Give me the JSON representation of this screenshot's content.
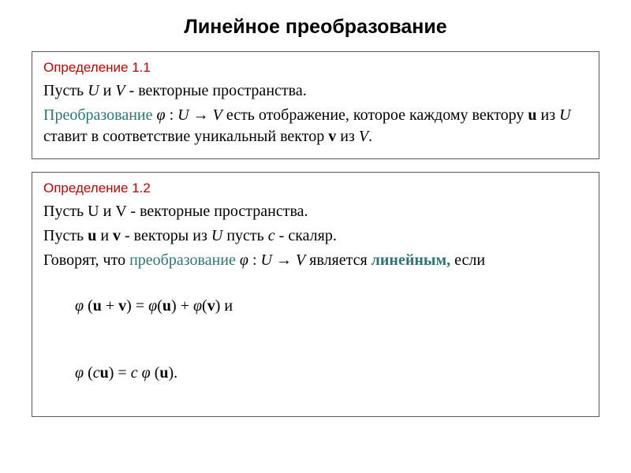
{
  "title": "Линейное преобразование",
  "colors": {
    "text": "#000000",
    "border": "#595959",
    "accent_red": "#c00000",
    "accent_teal": "#2e7474",
    "background": "#ffffff"
  },
  "typography": {
    "title_fontsize": 25,
    "body_fontsize": 20,
    "defhead_fontsize": 17,
    "title_family": "Arial",
    "body_family": "Times New Roman"
  },
  "def1": {
    "heading": "Определение 1.1",
    "line1_a": "Пусть ",
    "line1_U": "U",
    "line1_b": " и ",
    "line1_V": "V",
    "line1_c": "  - векторные пространства.",
    "line2_term": "Преобразование",
    "line2_a": "   ",
    "line2_phi": "φ",
    "line2_b": " :  ",
    "line2_U": "U",
    "line2_arrow": " → ",
    "line2_V": "V",
    "line2_c": " есть отображение, которое каждому вектору  ",
    "line2_u": "u",
    "line2_d": " из ",
    "line2_U2": "U",
    "line2_e": " ставит в соответствие уникальный вектор ",
    "line2_vv": "v",
    "line2_f": " из ",
    "line2_V2": "V",
    "line2_g": "."
  },
  "def2": {
    "heading": "Определение 1.2",
    "line1_a": "Пусть U и V  - векторные пространства.",
    "line2_a": "Пусть ",
    "line2_u": "u",
    "line2_b": " и ",
    "line2_v": "v",
    "line2_c": "  -  векторы из ",
    "line2_U": "U",
    "line2_d": " пусть ",
    "line2_cc": "c",
    "line2_e": " - скаляр.",
    "line3_a": "Говорят, что ",
    "line3_term": "преобразование ",
    "line3_phi": "φ",
    "line3_b": " : ",
    "line3_U": "U",
    "line3_arrow": " → ",
    "line3_V": "V",
    "line3_c": " является ",
    "line3_term2": "линейным,",
    "line3_d": " если",
    "line4_a": "  ",
    "line4_phi1": "φ",
    "line4_b": " (",
    "line4_u": "u",
    "line4_c": " + ",
    "line4_v": "v",
    "line4_d": ") = ",
    "line4_phi2": "φ",
    "line4_e": "(",
    "line4_u2": "u",
    "line4_f": ") + ",
    "line4_phi3": "φ",
    "line4_g": "(",
    "line4_v2": "v",
    "line4_h": ") и",
    "line5_a": "  ",
    "line5_phi1": "φ",
    "line5_b": " (",
    "line5_c": "c",
    "line5_u": "u",
    "line5_d": ") = ",
    "line5_c2": "c ",
    "line5_phi2": "φ",
    "line5_e": " (",
    "line5_u2": "u",
    "line5_f": ")."
  }
}
